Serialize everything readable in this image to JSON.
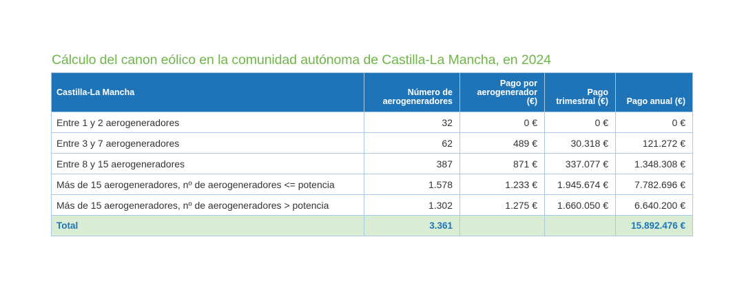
{
  "title": "Cálculo del canon eólico en la comunidad autónoma de Castilla-La Mancha, en 2024",
  "table": {
    "headers": [
      "Castilla-La Mancha",
      "Número de aerogeneradores",
      "Pago por aerogenerador (€)",
      "Pago trimestral (€)",
      "Pago anual (€)"
    ],
    "rows": [
      [
        "Entre 1 y 2 aerogeneradores",
        "32",
        "0 €",
        "0 €",
        "0 €"
      ],
      [
        "Entre 3 y 7 aerogeneradores",
        "62",
        "489 €",
        "30.318 €",
        "121.272 €"
      ],
      [
        "Entre 8 y 15 aerogeneradores",
        "387",
        "871 €",
        "337.077 €",
        "1.348.308 €"
      ],
      [
        "Más de 15 aerogeneradores, nº de aerogeneradores <= potencia",
        "1.578",
        "1.233 €",
        "1.945.674 €",
        "7.782.696 €"
      ],
      [
        "Más de 15 aerogeneradores, nº de aerogeneradores > potencia",
        "1.302",
        "1.275 €",
        "1.660.050 €",
        "6.640.200 €"
      ]
    ],
    "total": [
      "Total",
      "3.361",
      "",
      "",
      "15.892.476 €"
    ]
  },
  "colors": {
    "title": "#6fb548",
    "header_bg": "#1f74b8",
    "total_bg": "#d9ecd4",
    "total_text": "#1f74b8",
    "border": "#a9c9e6"
  }
}
